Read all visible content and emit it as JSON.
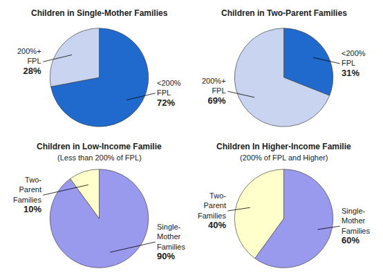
{
  "chart_data": [
    {
      "type": "pie",
      "title": "Children in Single-Mother Families",
      "categories": [
        "<200%\nFPL",
        "200%+\nFPL"
      ],
      "values": [
        72,
        28
      ],
      "value_labels": [
        "72%",
        "28%"
      ],
      "colors": [
        "#1F6ACC",
        "#C8D4F0"
      ],
      "data_labels": true
    },
    {
      "type": "pie",
      "title": "Children in Two-Parent Families",
      "categories": [
        "<200%\nFPL",
        "200%+\nFPL"
      ],
      "values": [
        31,
        69
      ],
      "value_labels": [
        "31%",
        "69%"
      ],
      "colors": [
        "#1F6ACC",
        "#C8D4F0"
      ],
      "data_labels": true
    },
    {
      "type": "pie",
      "title": "Children in Low-Income Familie",
      "subtitle": "(Less than 200% of FPL)",
      "categories": [
        "Single-\nMother\nFamilies",
        "Two-\nParent\nFamilies"
      ],
      "values": [
        90,
        10
      ],
      "value_labels": [
        "90%",
        "10%"
      ],
      "colors": [
        "#9999EE",
        "#FFFFCC"
      ],
      "data_labels": true
    },
    {
      "type": "pie",
      "title": "Children In Higher-Income Familie",
      "subtitle": "(200% of FPL and Higher)",
      "categories": [
        "Single-\nMother\nFamilies",
        "Two-\nParent\nFamilies"
      ],
      "values": [
        60,
        40
      ],
      "value_labels": [
        "60%",
        "40%"
      ],
      "colors": [
        "#9999EE",
        "#FFFFCC"
      ],
      "data_labels": true
    }
  ]
}
